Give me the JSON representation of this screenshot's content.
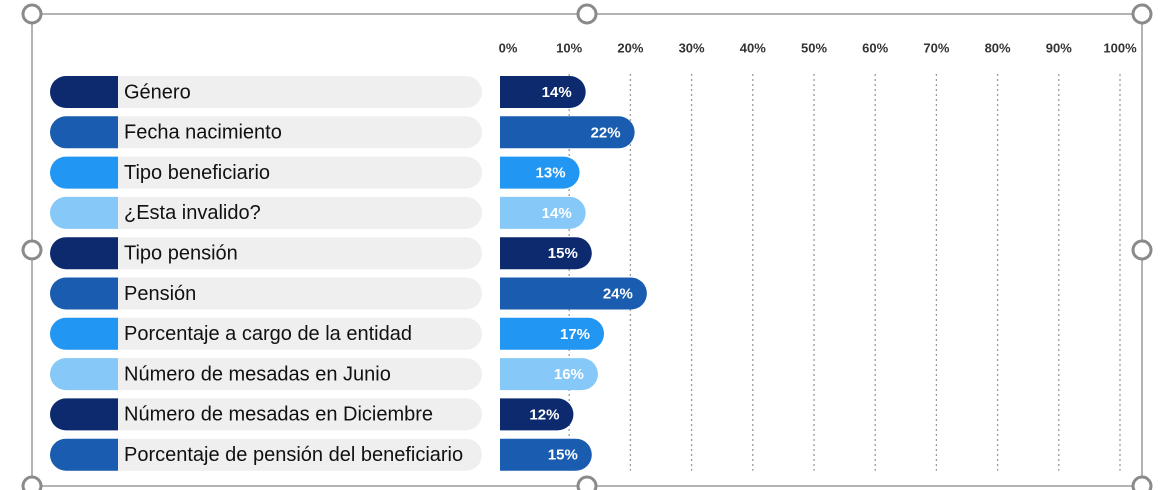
{
  "chart_data": {
    "type": "bar",
    "orientation": "horizontal",
    "categories": [
      "Género",
      "Fecha nacimiento",
      "Tipo beneficiario",
      "¿Esta invalido?",
      "Tipo pensión",
      "Pensión",
      "Porcentaje a cargo de la entidad",
      "Número de mesadas en Junio",
      "Número de mesadas en Diciembre",
      "Porcentaje de pensión del beneficiario"
    ],
    "values": [
      14,
      22,
      13,
      14,
      15,
      24,
      17,
      16,
      12,
      15
    ],
    "value_labels": [
      "14%",
      "22%",
      "13%",
      "14%",
      "15%",
      "24%",
      "17%",
      "16%",
      "12%",
      "15%"
    ],
    "colors": [
      "#0d2a6e",
      "#1a5cb0",
      "#2196f3",
      "#86c9f8",
      "#0d2a6e",
      "#1a5cb0",
      "#2196f3",
      "#86c9f8",
      "#0d2a6e",
      "#1a5cb0"
    ],
    "xlim": [
      0,
      100
    ],
    "xticks": [
      {
        "value": 0,
        "label": "0%"
      },
      {
        "value": 10,
        "label": "10%"
      },
      {
        "value": 20,
        "label": "20%"
      },
      {
        "value": 30,
        "label": "30%"
      },
      {
        "value": 40,
        "label": "40%"
      },
      {
        "value": 50,
        "label": "50%"
      },
      {
        "value": 60,
        "label": "60%"
      },
      {
        "value": 70,
        "label": "70%"
      },
      {
        "value": 80,
        "label": "80%"
      },
      {
        "value": 90,
        "label": "90%"
      },
      {
        "value": 100,
        "label": "100%"
      }
    ],
    "grid": true
  }
}
